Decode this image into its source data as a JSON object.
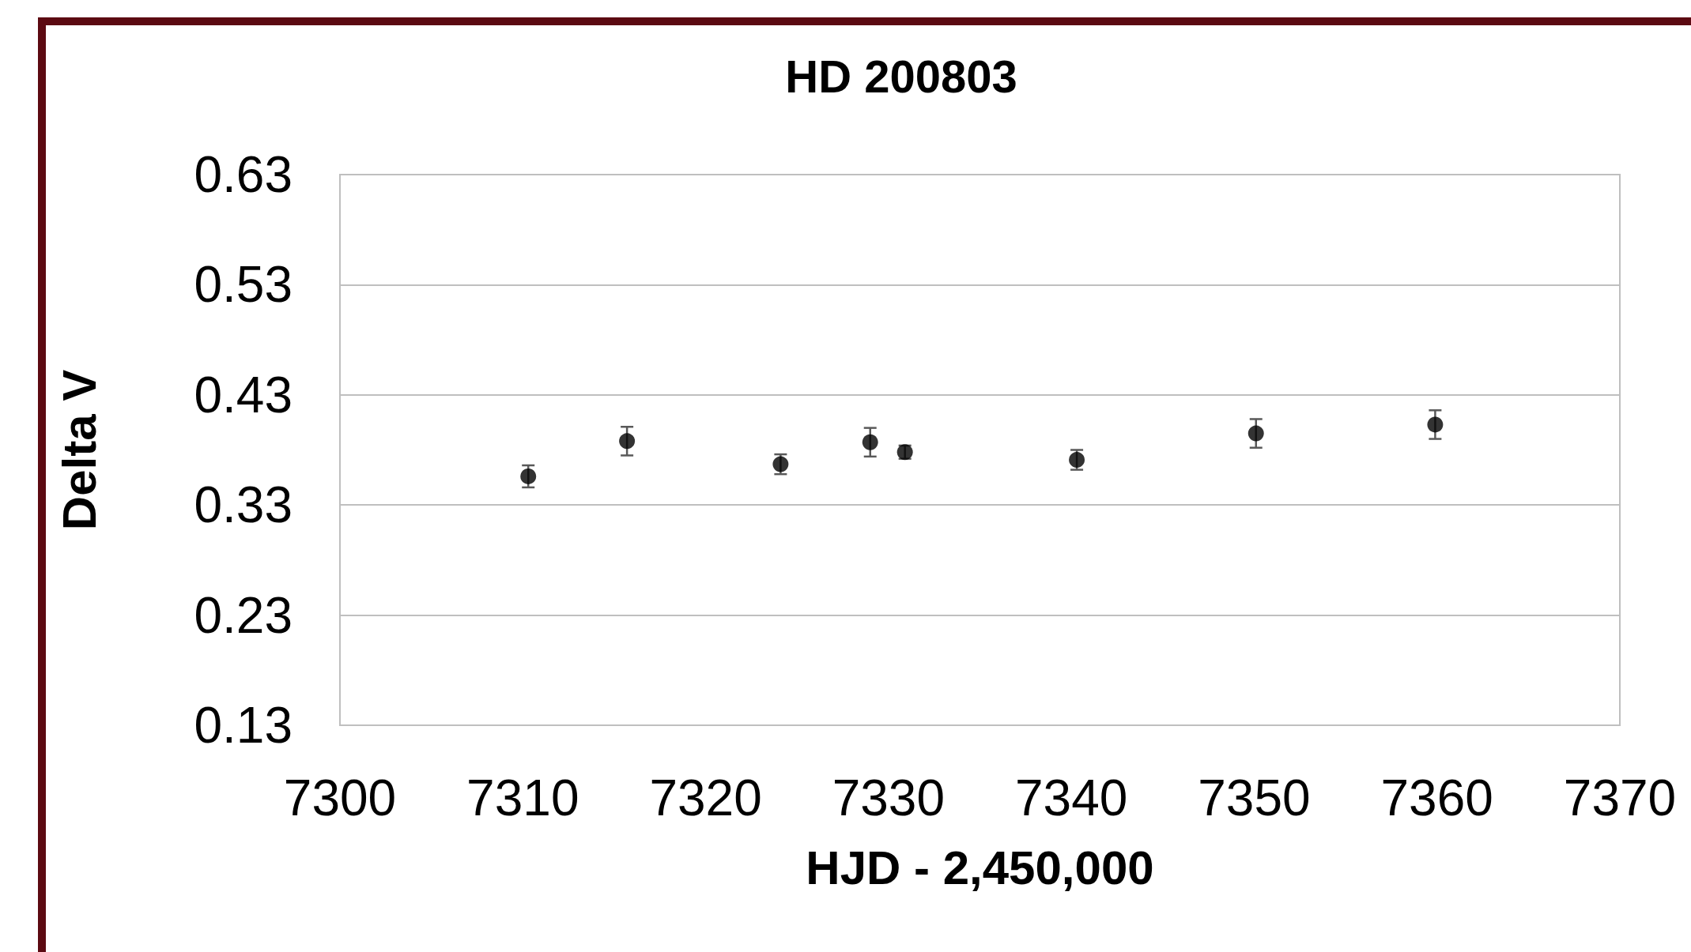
{
  "chart_data": {
    "type": "scatter",
    "title": "HD 200803",
    "xlabel": "HJD - 2,450,000",
    "ylabel": "Delta V",
    "x": [
      7310.3,
      7315.7,
      7324.1,
      7329.0,
      7330.9,
      7340.3,
      7350.1,
      7359.9
    ],
    "series": [
      {
        "color": "#000000",
        "values": [
          0.356,
          0.388,
          0.367,
          0.387,
          0.378,
          0.371,
          0.395,
          0.403
        ],
        "errors": [
          0.01,
          0.013,
          0.009,
          0.013,
          0.006,
          0.009,
          0.013,
          0.013
        ]
      }
    ],
    "xlim": [
      7300,
      7370
    ],
    "xticks": [
      7300,
      7310,
      7320,
      7330,
      7340,
      7350,
      7360,
      7370
    ],
    "ylim": [
      0.13,
      0.63
    ],
    "yticks": [
      0.13,
      0.23,
      0.33,
      0.43,
      0.53,
      0.63
    ],
    "grid": "y",
    "marker": "circle"
  }
}
